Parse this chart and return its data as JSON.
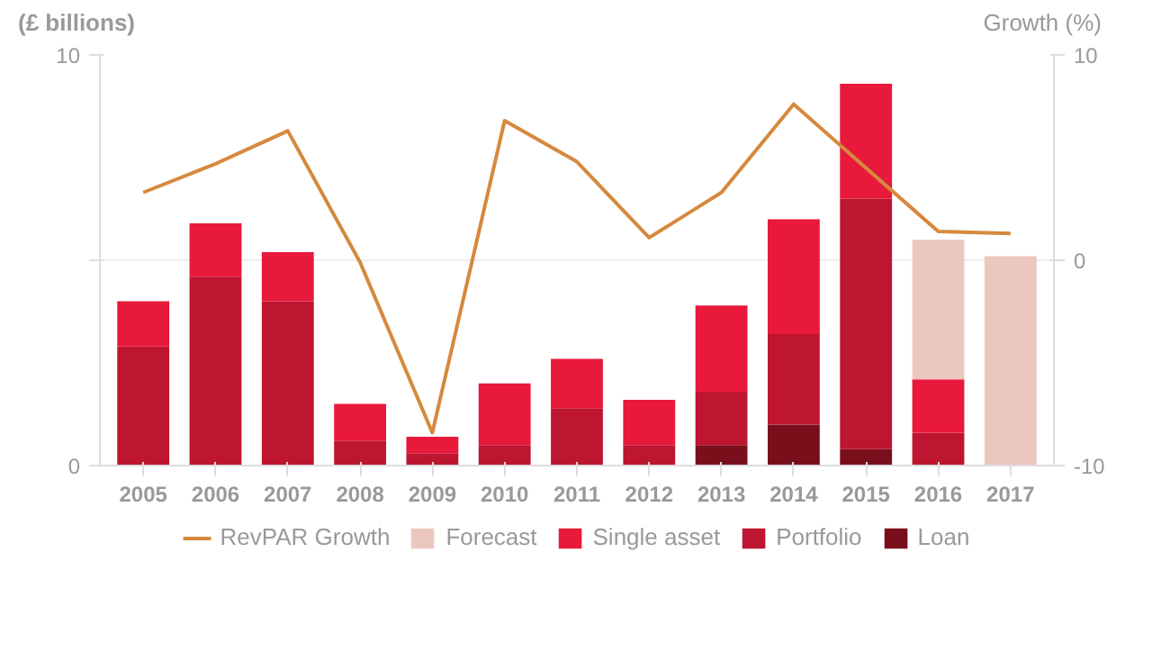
{
  "chart_data": {
    "type": "bar",
    "stacked": true,
    "ylabel": "(£ billions)",
    "y2label": "Growth (%)",
    "categories": [
      "2005",
      "2006",
      "2007",
      "2008",
      "2009",
      "2010",
      "2011",
      "2012",
      "2013",
      "2014",
      "2015",
      "2016",
      "2017"
    ],
    "series": [
      {
        "name": "Loan",
        "color": "#7a0f1c",
        "values": [
          null,
          null,
          null,
          null,
          null,
          null,
          null,
          null,
          0.5,
          1.0,
          0.4,
          null,
          null
        ]
      },
      {
        "name": "Portfolio",
        "color": "#be1530",
        "values": [
          2.9,
          4.6,
          4.0,
          0.6,
          0.3,
          0.5,
          1.4,
          0.5,
          1.3,
          2.2,
          6.1,
          0.8,
          null
        ]
      },
      {
        "name": "Single asset",
        "color": "#e8193a",
        "values": [
          1.1,
          1.3,
          1.2,
          0.9,
          0.4,
          1.5,
          1.2,
          1.1,
          2.1,
          2.8,
          2.8,
          1.3,
          null
        ]
      },
      {
        "name": "Forecast",
        "color": "#ecc7c0",
        "values": [
          null,
          null,
          null,
          null,
          null,
          null,
          null,
          null,
          null,
          null,
          null,
          3.4,
          5.1
        ]
      },
      {
        "name": "RevPAR Growth",
        "type": "line",
        "axis": "y2",
        "color": "#d6893e",
        "values": [
          3.3,
          4.7,
          6.3,
          -0.1,
          -8.4,
          6.8,
          4.8,
          1.1,
          3.3,
          7.6,
          4.5,
          1.4,
          1.3
        ]
      }
    ],
    "ylim": [
      0,
      10
    ],
    "yticks": [
      0,
      {
        "value": 5,
        "label": null
      },
      10
    ],
    "y2lim": [
      -10,
      10
    ],
    "y2ticks": [
      -10,
      0,
      10
    ],
    "grid": "y",
    "legend": "bottom"
  }
}
